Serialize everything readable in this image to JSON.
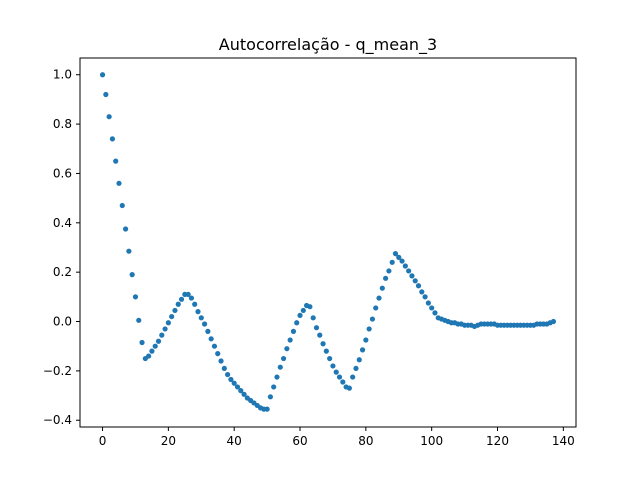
{
  "chart_data": {
    "type": "scatter",
    "title": "Autocorrelação - q_mean_3",
    "xlabel": "",
    "ylabel": "",
    "xlim": [
      -6.85,
      143.85
    ],
    "ylim": [
      -0.4274,
      1.0678
    ],
    "x_ticks": [
      0,
      20,
      40,
      60,
      80,
      100,
      120,
      140
    ],
    "y_ticks": [
      -0.4,
      -0.2,
      0.0,
      0.2,
      0.4,
      0.6,
      0.8,
      1.0
    ],
    "x_tick_labels": [
      "0",
      "20",
      "40",
      "60",
      "80",
      "100",
      "120",
      "140"
    ],
    "y_tick_labels": [
      "−0.4",
      "−0.2",
      "0.0",
      "0.2",
      "0.4",
      "0.6",
      "0.8",
      "1.0"
    ],
    "grid": false,
    "marker_color": "#1f77b4",
    "x": [
      0,
      1,
      2,
      3,
      4,
      5,
      6,
      7,
      8,
      9,
      10,
      11,
      12,
      13,
      14,
      15,
      16,
      17,
      18,
      19,
      20,
      21,
      22,
      23,
      24,
      25,
      26,
      27,
      28,
      29,
      30,
      31,
      32,
      33,
      34,
      35,
      36,
      37,
      38,
      39,
      40,
      41,
      42,
      43,
      44,
      45,
      46,
      47,
      48,
      49,
      50,
      51,
      52,
      53,
      54,
      55,
      56,
      57,
      58,
      59,
      60,
      61,
      62,
      63,
      64,
      65,
      66,
      67,
      68,
      69,
      70,
      71,
      72,
      73,
      74,
      75,
      76,
      77,
      78,
      79,
      80,
      81,
      82,
      83,
      84,
      85,
      86,
      87,
      88,
      89,
      90,
      91,
      92,
      93,
      94,
      95,
      96,
      97,
      98,
      99,
      100,
      101,
      102,
      103,
      104,
      105,
      106,
      107,
      108,
      109,
      110,
      111,
      112,
      113,
      114,
      115,
      116,
      117,
      118,
      119,
      120,
      121,
      122,
      123,
      124,
      125,
      126,
      127,
      128,
      129,
      130,
      131,
      132,
      133,
      134,
      135,
      136,
      137
    ],
    "y": [
      1.0,
      0.92,
      0.83,
      0.74,
      0.65,
      0.56,
      0.47,
      0.375,
      0.285,
      0.19,
      0.1,
      0.005,
      -0.085,
      -0.15,
      -0.14,
      -0.12,
      -0.1,
      -0.08,
      -0.055,
      -0.03,
      -0.005,
      0.02,
      0.045,
      0.07,
      0.09,
      0.11,
      0.11,
      0.095,
      0.07,
      0.04,
      0.015,
      -0.01,
      -0.04,
      -0.07,
      -0.1,
      -0.13,
      -0.16,
      -0.19,
      -0.215,
      -0.235,
      -0.25,
      -0.265,
      -0.28,
      -0.295,
      -0.31,
      -0.32,
      -0.33,
      -0.34,
      -0.35,
      -0.355,
      -0.355,
      -0.305,
      -0.265,
      -0.225,
      -0.185,
      -0.15,
      -0.11,
      -0.075,
      -0.04,
      -0.005,
      0.025,
      0.045,
      0.065,
      0.06,
      0.015,
      -0.025,
      -0.055,
      -0.09,
      -0.12,
      -0.15,
      -0.18,
      -0.205,
      -0.225,
      -0.245,
      -0.265,
      -0.27,
      -0.225,
      -0.19,
      -0.155,
      -0.115,
      -0.075,
      -0.03,
      0.01,
      0.055,
      0.095,
      0.135,
      0.175,
      0.205,
      0.24,
      0.275,
      0.26,
      0.245,
      0.225,
      0.205,
      0.185,
      0.165,
      0.145,
      0.12,
      0.1,
      0.075,
      0.055,
      0.035,
      0.015,
      0.01,
      0.005,
      0.0,
      -0.005,
      -0.005,
      -0.01,
      -0.01,
      -0.015,
      -0.015,
      -0.015,
      -0.02,
      -0.015,
      -0.01,
      -0.01,
      -0.01,
      -0.01,
      -0.01,
      -0.015,
      -0.015,
      -0.015,
      -0.015,
      -0.015,
      -0.015,
      -0.015,
      -0.015,
      -0.015,
      -0.015,
      -0.015,
      -0.015,
      -0.01,
      -0.01,
      -0.01,
      -0.01,
      -0.005,
      0.0
    ]
  }
}
